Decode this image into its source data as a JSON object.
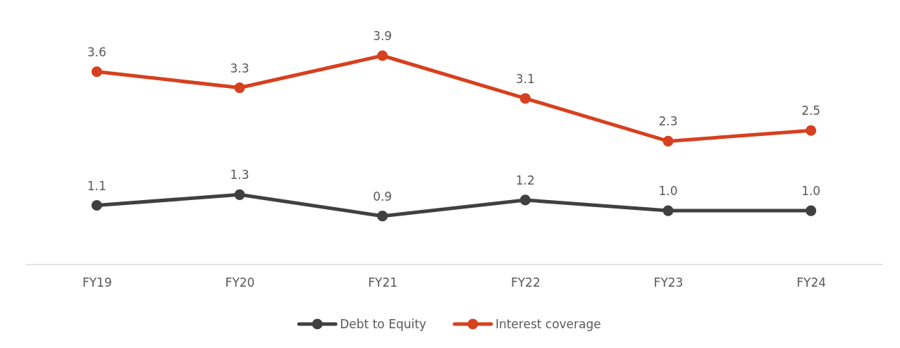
{
  "chart_data": {
    "type": "line",
    "categories": [
      "FY19",
      "FY20",
      "FY21",
      "FY22",
      "FY23",
      "FY24"
    ],
    "series": [
      {
        "name": "Debt to Equity",
        "color": "#404040",
        "values": [
          1.1,
          1.3,
          0.9,
          1.2,
          1.0,
          1.0
        ],
        "value_labels": [
          "1.1",
          "1.3",
          "0.9",
          "1.2",
          "1.0",
          "1.0"
        ]
      },
      {
        "name": "Interest coverage",
        "color": "#d7401e",
        "values": [
          3.6,
          3.3,
          3.9,
          3.1,
          2.3,
          2.5
        ],
        "value_labels": [
          "3.6",
          "3.3",
          "3.9",
          "3.1",
          "2.3",
          "2.5"
        ]
      }
    ],
    "marker": "circle",
    "legend": "bottom",
    "grid": false
  }
}
